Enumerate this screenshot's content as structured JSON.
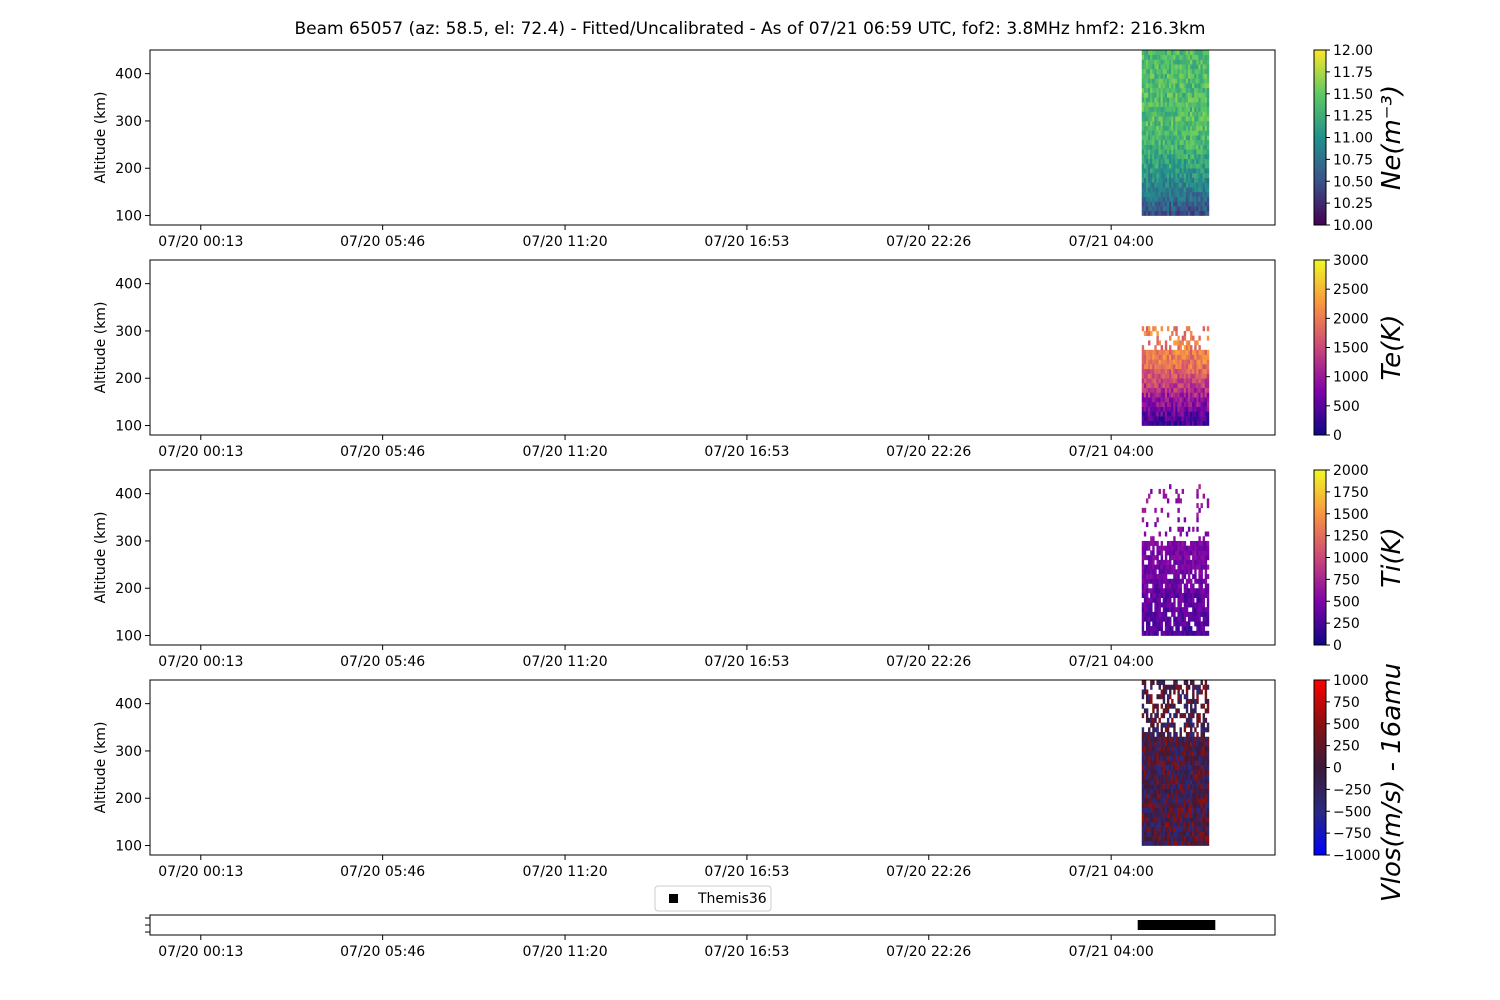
{
  "title": "Beam 65057 (az: 58.5, el: 72.4) - Fitted/Uncalibrated - As of 07/21 06:59 UTC, fof2: 3.8MHz  hmf2: 216.3km",
  "x_tick_labels": [
    "07/20 00:13",
    "07/20 05:46",
    "07/20 11:20",
    "07/20 16:53",
    "07/20 22:26",
    "07/21 04:00"
  ],
  "y_tick_labels": [
    "100",
    "200",
    "300",
    "400"
  ],
  "legend_label": "Themis36",
  "colors": {
    "viridis": [
      "#440154",
      "#3b528b",
      "#21918c",
      "#5ec962",
      "#fde725"
    ],
    "plasma": [
      "#0d0887",
      "#7e03a8",
      "#cc4778",
      "#f89540",
      "#f0f921"
    ],
    "bwr_dark": [
      "#0000ff",
      "#2a2a80",
      "#3a1a3a",
      "#8a1010",
      "#ff0000"
    ],
    "marker": "#000000"
  },
  "chart_data": [
    {
      "type": "heatmap",
      "ylabel": "Altitude (km)",
      "xlim": [
        "07/19 22:40",
        "07/21 09:00"
      ],
      "ylim": [
        80,
        450
      ],
      "data_x_range": [
        "07/21 04:56",
        "07/21 06:59"
      ],
      "data_y_range": [
        100,
        450
      ],
      "colorbar": {
        "label": "Ne(m^{-3})",
        "range": [
          10.0,
          12.0
        ],
        "ticks": [
          "10.00",
          "10.25",
          "10.50",
          "10.75",
          "11.00",
          "11.25",
          "11.50",
          "11.75",
          "12.00"
        ],
        "colormap": "viridis"
      }
    },
    {
      "type": "heatmap",
      "ylabel": "Altitude (km)",
      "xlim": [
        "07/19 22:40",
        "07/21 09:00"
      ],
      "ylim": [
        80,
        450
      ],
      "data_x_range": [
        "07/21 04:56",
        "07/21 06:59"
      ],
      "data_y_range": [
        100,
        310
      ],
      "colorbar": {
        "label": "Te(K)",
        "range": [
          0,
          3000
        ],
        "ticks": [
          "0",
          "500",
          "1000",
          "1500",
          "2000",
          "2500",
          "3000"
        ],
        "colormap": "plasma"
      }
    },
    {
      "type": "heatmap",
      "ylabel": "Altitude (km)",
      "xlim": [
        "07/19 22:40",
        "07/21 09:00"
      ],
      "ylim": [
        80,
        450
      ],
      "data_x_range": [
        "07/21 04:56",
        "07/21 06:59"
      ],
      "data_y_range": [
        100,
        420
      ],
      "colorbar": {
        "label": "Ti(K)",
        "range": [
          0,
          2000
        ],
        "ticks": [
          "0",
          "250",
          "500",
          "750",
          "1000",
          "1250",
          "1500",
          "1750",
          "2000"
        ],
        "colormap": "plasma"
      }
    },
    {
      "type": "heatmap",
      "ylabel": "Altitude (km)",
      "xlim": [
        "07/19 22:40",
        "07/21 09:00"
      ],
      "ylim": [
        80,
        450
      ],
      "data_x_range": [
        "07/21 04:56",
        "07/21 06:59"
      ],
      "data_y_range": [
        100,
        450
      ],
      "colorbar": {
        "label": "Vlos(m/s) - 16amu",
        "range": [
          -1000,
          1000
        ],
        "ticks": [
          "−1000",
          "−750",
          "−500",
          "−250",
          "0",
          "250",
          "500",
          "750",
          "1000"
        ],
        "colormap": "bwr_dark"
      }
    },
    {
      "type": "scatter",
      "legend": "Themis36",
      "legend_loc": "upper center",
      "xlim": [
        "07/19 22:40",
        "07/21 09:00"
      ],
      "data_x_range": [
        "07/21 04:56",
        "07/21 06:59"
      ],
      "marker": "square",
      "color": "#000000"
    }
  ]
}
